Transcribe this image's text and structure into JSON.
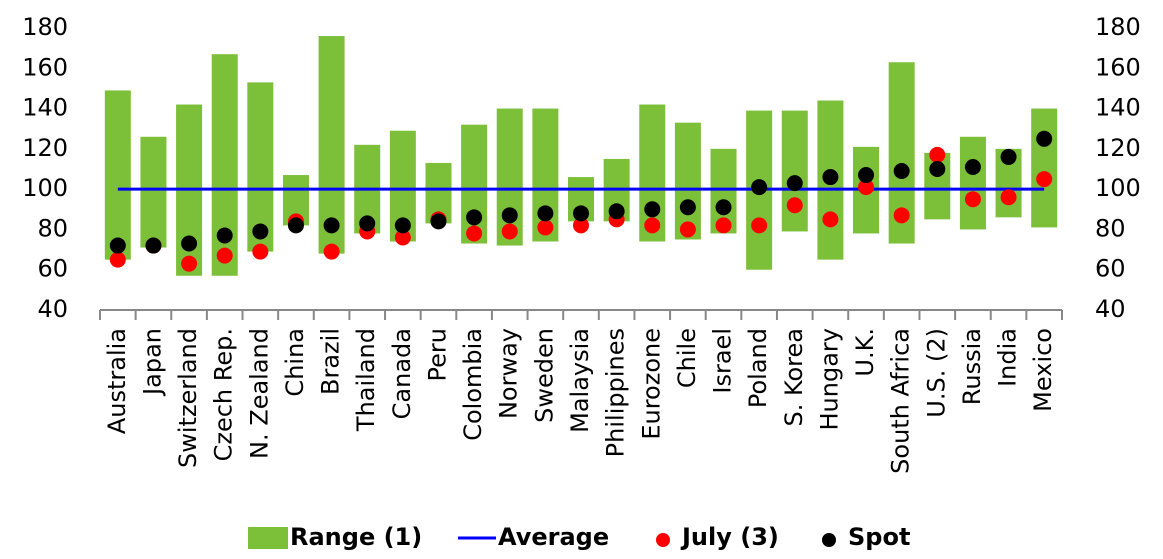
{
  "chart_data": {
    "type": "range-bar",
    "categories": [
      "Australia",
      "Japan",
      "Switzerland",
      "Czech Rep.",
      "N. Zealand",
      "China",
      "Brazil",
      "Thailand",
      "Canada",
      "Peru",
      "Colombia",
      "Norway",
      "Sweden",
      "Malaysia",
      "Philippines",
      "Eurozone",
      "Chile",
      "Israel",
      "Poland",
      "S. Korea",
      "Hungary",
      "U.K.",
      "South Africa",
      "U.S. (2)",
      "Russia",
      "India",
      "Mexico"
    ],
    "series": [
      {
        "name": "Range (1)",
        "kind": "range",
        "color": "#7cc03a",
        "low": [
          65,
          71,
          57,
          57,
          69,
          82,
          68,
          78,
          74,
          83,
          73,
          72,
          74,
          84,
          84,
          74,
          75,
          78,
          60,
          79,
          65,
          78,
          73,
          85,
          80,
          86,
          81
        ],
        "high": [
          149,
          126,
          142,
          167,
          153,
          107,
          176,
          122,
          129,
          113,
          132,
          140,
          140,
          106,
          115,
          142,
          133,
          120,
          139,
          139,
          144,
          121,
          163,
          118,
          126,
          120,
          140
        ]
      },
      {
        "name": "Average",
        "kind": "hline",
        "color": "#0000ff",
        "value": 100
      },
      {
        "name": "July (3)",
        "kind": "dot",
        "color": "#ff0000",
        "values": [
          65,
          72,
          63,
          67,
          69,
          84,
          69,
          79,
          76,
          85,
          78,
          79,
          81,
          82,
          85,
          82,
          80,
          82,
          82,
          92,
          85,
          101,
          87,
          117,
          95,
          96,
          105
        ]
      },
      {
        "name": "Spot",
        "kind": "dot",
        "color": "#000000",
        "values": [
          72,
          72,
          73,
          77,
          79,
          82,
          82,
          83,
          82,
          84,
          86,
          87,
          88,
          88,
          89,
          90,
          91,
          91,
          101,
          103,
          106,
          107,
          109,
          110,
          111,
          116,
          125
        ]
      }
    ],
    "ylim": [
      40,
      180
    ],
    "yticks": [
      40,
      60,
      80,
      100,
      120,
      140,
      160,
      180
    ],
    "y2lim": [
      40,
      180
    ],
    "y2ticks": [
      40,
      60,
      80,
      100,
      120,
      140,
      160,
      180
    ],
    "legend": "bottom"
  }
}
